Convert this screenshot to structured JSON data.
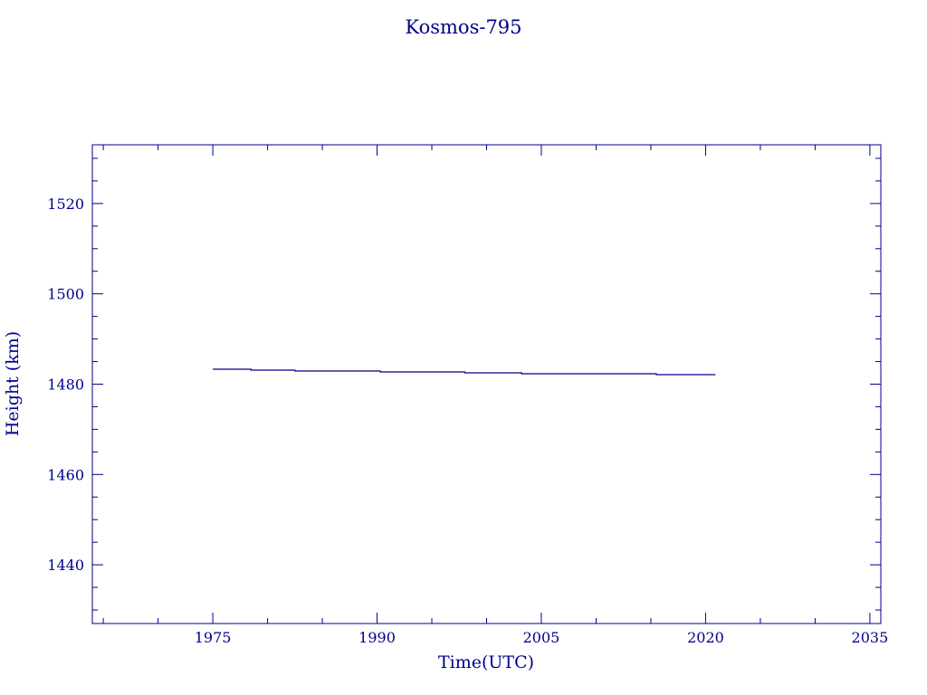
{
  "chart_data": {
    "type": "line",
    "title": "Kosmos-795",
    "xlabel": "Time(UTC)",
    "ylabel": "Height (km)",
    "xlim": [
      1964,
      2036
    ],
    "ylim": [
      1427,
      1533
    ],
    "x_ticks": [
      "1975",
      "1990",
      "2005",
      "2020",
      "2035"
    ],
    "y_ticks": [
      "1440",
      "1460",
      "1480",
      "1500",
      "1520"
    ],
    "grid": false,
    "color": "#00008b",
    "series": [
      {
        "x": [
          1975.0,
          1978.5,
          1978.5,
          1982.5,
          1982.5,
          1990.3,
          1990.3,
          1998.0,
          1998.0,
          2003.2,
          2003.2,
          2015.5,
          2015.5,
          2020.9
        ],
        "y": [
          1483.3,
          1483.3,
          1483.1,
          1483.1,
          1482.9,
          1482.9,
          1482.7,
          1482.7,
          1482.5,
          1482.5,
          1482.3,
          1482.3,
          1482.1,
          1482.1
        ]
      }
    ]
  }
}
